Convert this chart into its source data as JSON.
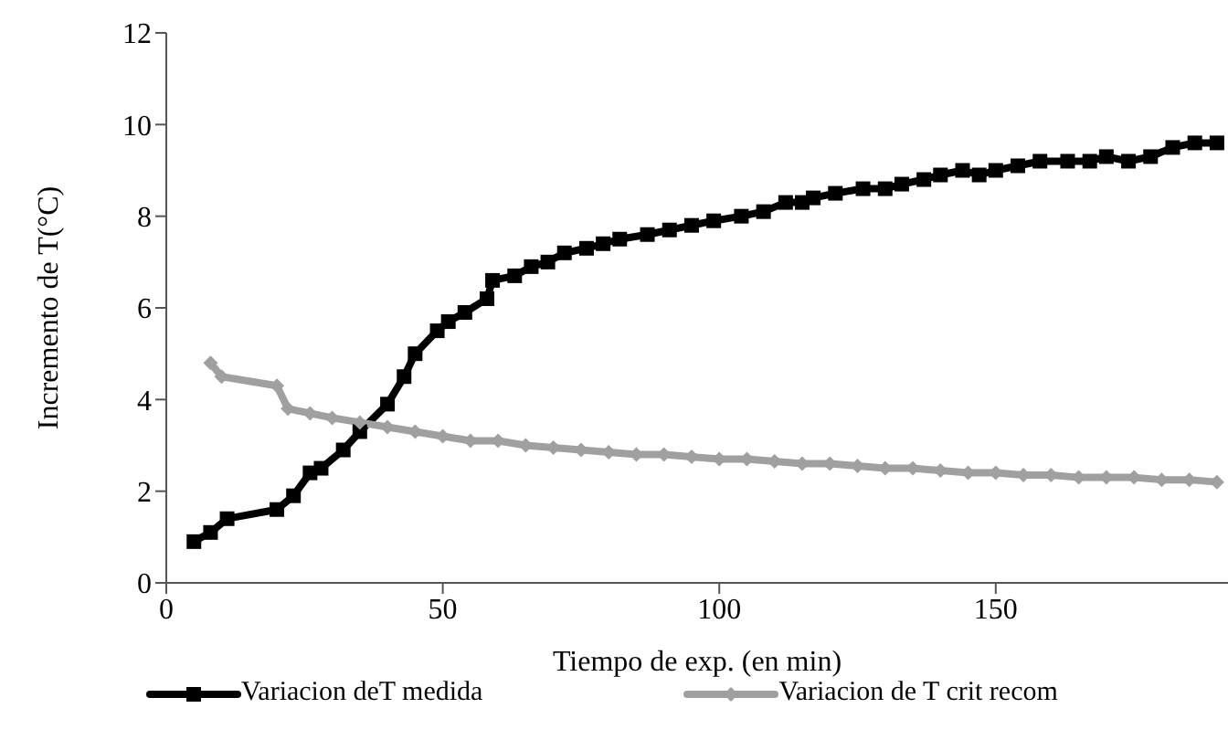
{
  "chart_data": {
    "type": "line",
    "xlabel": "Tiempo de exp. (en min)",
    "ylabel": "Incremento de T(°C)",
    "xlim": [
      0,
      192
    ],
    "xticks": [
      0,
      50,
      100,
      150
    ],
    "ylim": [
      0,
      12
    ],
    "yticks": [
      0,
      2,
      4,
      6,
      8,
      10,
      12
    ],
    "grid": false,
    "legend": "bottom",
    "line_style": "solid",
    "series": [
      {
        "name": "Variacion deT medida",
        "color": "#000000",
        "marker": "square",
        "x": [
          5,
          8,
          11,
          20,
          23,
          26,
          28,
          32,
          35,
          40,
          43,
          45,
          49,
          51,
          54,
          58,
          59,
          63,
          66,
          69,
          72,
          76,
          79,
          82,
          87,
          91,
          95,
          99,
          104,
          108,
          112,
          115,
          117,
          121,
          126,
          130,
          133,
          137,
          140,
          144,
          147,
          150,
          154,
          158,
          163,
          167,
          170,
          174,
          178,
          182,
          186,
          190
        ],
        "values": [
          0.9,
          1.1,
          1.4,
          1.6,
          1.9,
          2.4,
          2.5,
          2.9,
          3.3,
          3.9,
          4.5,
          5.0,
          5.5,
          5.7,
          5.9,
          6.2,
          6.6,
          6.7,
          6.9,
          7.0,
          7.2,
          7.3,
          7.4,
          7.5,
          7.6,
          7.7,
          7.8,
          7.9,
          8.0,
          8.1,
          8.3,
          8.3,
          8.4,
          8.5,
          8.6,
          8.6,
          8.7,
          8.8,
          8.9,
          9.0,
          8.9,
          9.0,
          9.1,
          9.2,
          9.2,
          9.2,
          9.3,
          9.2,
          9.3,
          9.5,
          9.6,
          9.6
        ]
      },
      {
        "name": "Variacion de T crit recom",
        "color": "#a0a0a0",
        "marker": "diamond",
        "x": [
          8,
          10,
          20,
          22,
          26,
          30,
          35,
          40,
          45,
          50,
          55,
          60,
          65,
          70,
          75,
          80,
          85,
          90,
          95,
          100,
          105,
          110,
          115,
          120,
          125,
          130,
          135,
          140,
          145,
          150,
          155,
          160,
          165,
          170,
          175,
          180,
          185,
          190
        ],
        "values": [
          4.8,
          4.5,
          4.3,
          3.8,
          3.7,
          3.6,
          3.5,
          3.4,
          3.3,
          3.2,
          3.1,
          3.1,
          3.0,
          2.95,
          2.9,
          2.85,
          2.8,
          2.8,
          2.75,
          2.7,
          2.7,
          2.65,
          2.6,
          2.6,
          2.55,
          2.5,
          2.5,
          2.45,
          2.4,
          2.4,
          2.35,
          2.35,
          2.3,
          2.3,
          2.3,
          2.25,
          2.25,
          2.2
        ]
      }
    ]
  }
}
